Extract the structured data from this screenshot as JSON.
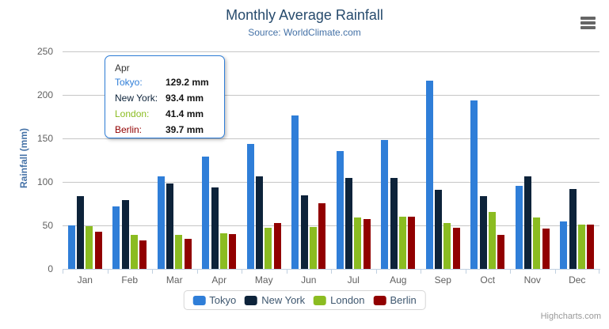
{
  "chart_data": {
    "type": "bar",
    "title": "Monthly Average Rainfall",
    "subtitle": "Source: WorldClimate.com",
    "categories": [
      "Jan",
      "Feb",
      "Mar",
      "Apr",
      "May",
      "Jun",
      "Jul",
      "Aug",
      "Sep",
      "Oct",
      "Nov",
      "Dec"
    ],
    "series": [
      {
        "name": "Tokyo",
        "color": "#2f7ed8",
        "values": [
          49.9,
          71.5,
          106.4,
          129.2,
          144.0,
          176.0,
          135.6,
          148.5,
          216.4,
          194.1,
          95.6,
          54.4
        ]
      },
      {
        "name": "New York",
        "color": "#0d233a",
        "values": [
          83.6,
          78.8,
          98.5,
          93.4,
          106.0,
          84.5,
          105.0,
          104.3,
          91.2,
          83.5,
          106.6,
          92.3
        ]
      },
      {
        "name": "London",
        "color": "#8bbc21",
        "values": [
          48.9,
          38.8,
          39.3,
          41.4,
          47.0,
          48.3,
          59.0,
          59.6,
          52.4,
          65.2,
          59.3,
          51.2
        ]
      },
      {
        "name": "Berlin",
        "color": "#910000",
        "values": [
          42.4,
          33.2,
          34.5,
          39.7,
          52.6,
          75.5,
          57.4,
          60.4,
          47.6,
          39.1,
          46.8,
          51.1
        ]
      }
    ],
    "xlabel": "",
    "ylabel": "Rainfall (mm)",
    "ylim": [
      0,
      250
    ],
    "yticks": [
      0,
      50,
      100,
      150,
      200,
      250
    ],
    "grid": true,
    "legend_position": "bottom",
    "value_suffix": " mm",
    "grid_color": "#C6C6C6",
    "axis_line_color": "#C0D0E0"
  },
  "tooltip": {
    "category": "Apr",
    "border_color": "#2f7ed8",
    "rows": [
      {
        "label": "Tokyo:",
        "value": "129.2 mm",
        "color": "#2f7ed8"
      },
      {
        "label": "New York:",
        "value": "93.4 mm",
        "color": "#0d233a"
      },
      {
        "label": "London:",
        "value": "41.4 mm",
        "color": "#8bbc21"
      },
      {
        "label": "Berlin:",
        "value": "39.7 mm",
        "color": "#910000"
      }
    ]
  },
  "icons": {
    "export_menu": "hamburger-icon"
  },
  "credits": "Highcharts.com"
}
